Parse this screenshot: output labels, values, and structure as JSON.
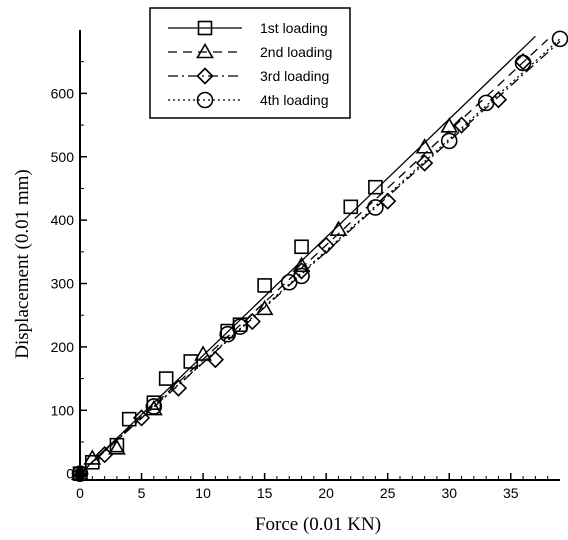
{
  "chart_data": {
    "type": "line",
    "title": "",
    "xlabel": "Force (0.01 KN)",
    "ylabel": "Displacement (0.01 mm)",
    "xlim": [
      0,
      39
    ],
    "ylim": [
      -10,
      700
    ],
    "xticks": [
      0,
      5,
      10,
      15,
      20,
      25,
      30,
      35
    ],
    "yticks": [
      0,
      100,
      200,
      300,
      400,
      500,
      600
    ],
    "grid": false,
    "legend_position": "top-center",
    "series": [
      {
        "name": "1st loading",
        "line_style": "solid",
        "marker": "square",
        "points": [
          [
            0,
            0
          ],
          [
            1,
            18
          ],
          [
            3,
            45
          ],
          [
            4,
            86
          ],
          [
            6,
            112
          ],
          [
            7,
            150
          ],
          [
            9,
            177
          ],
          [
            12,
            225
          ],
          [
            13,
            235
          ],
          [
            15,
            297
          ],
          [
            18,
            358
          ],
          [
            22,
            421
          ],
          [
            24,
            452
          ]
        ],
        "line": [
          [
            0,
            0
          ],
          [
            37,
            690
          ]
        ]
      },
      {
        "name": "2nd loading",
        "line_style": "dashed",
        "marker": "triangle",
        "points": [
          [
            0,
            0
          ],
          [
            1,
            24
          ],
          [
            3,
            40
          ],
          [
            6,
            102
          ],
          [
            10,
            188
          ],
          [
            15,
            260
          ],
          [
            18,
            328
          ],
          [
            21,
            385
          ],
          [
            28,
            515
          ],
          [
            30,
            548
          ]
        ],
        "line": [
          [
            0,
            0
          ],
          [
            38,
            685
          ]
        ]
      },
      {
        "name": "3rd loading",
        "line_style": "dash-dot",
        "marker": "diamond",
        "points": [
          [
            0,
            0
          ],
          [
            2,
            30
          ],
          [
            5,
            88
          ],
          [
            8,
            135
          ],
          [
            11,
            180
          ],
          [
            14,
            240
          ],
          [
            18,
            320
          ],
          [
            20,
            360
          ],
          [
            25,
            430
          ],
          [
            28,
            490
          ],
          [
            31,
            550
          ],
          [
            34,
            590
          ],
          [
            36,
            650
          ]
        ],
        "line": [
          [
            0,
            0
          ],
          [
            39,
            682
          ]
        ]
      },
      {
        "name": "4th loading",
        "line_style": "dotted",
        "marker": "circle",
        "points": [
          [
            0,
            0
          ],
          [
            6,
            106
          ],
          [
            12,
            220
          ],
          [
            13,
            232
          ],
          [
            17,
            302
          ],
          [
            18,
            312
          ],
          [
            24,
            420
          ],
          [
            30,
            525
          ],
          [
            33,
            585
          ],
          [
            36,
            648
          ],
          [
            39,
            686
          ]
        ],
        "line": [
          [
            0,
            0
          ],
          [
            39,
            686
          ]
        ]
      }
    ]
  }
}
